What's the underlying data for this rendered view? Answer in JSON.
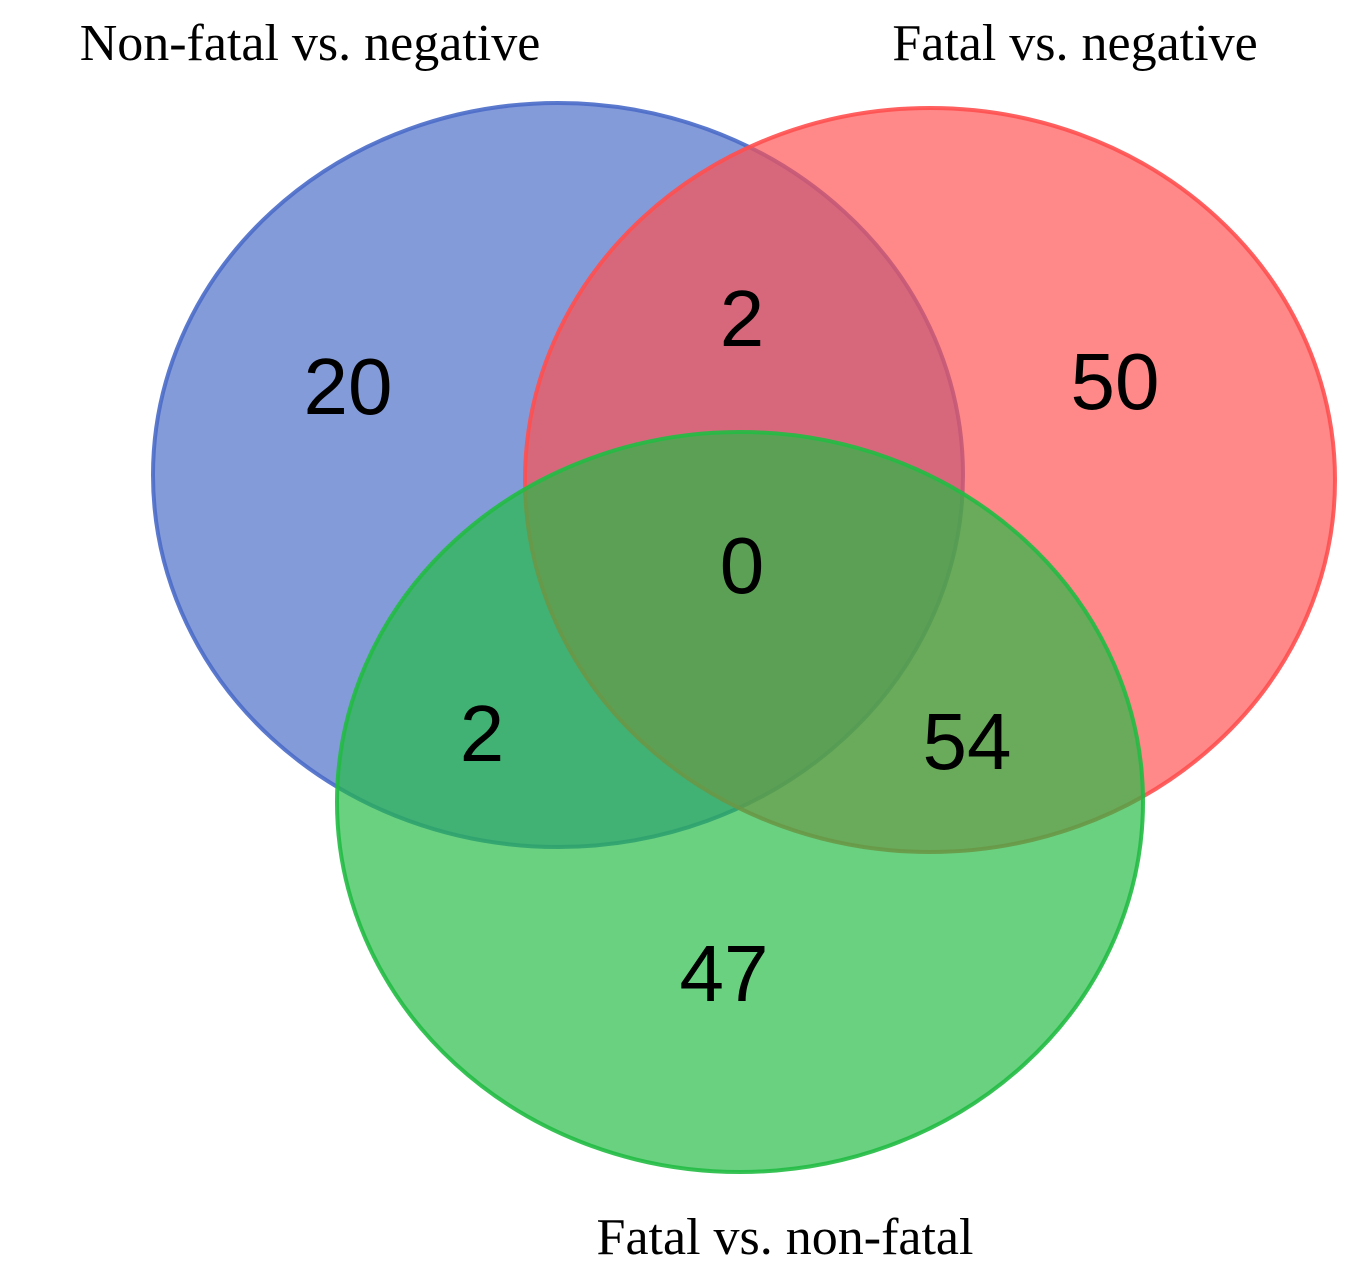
{
  "chart_data": {
    "type": "venn",
    "sets": [
      {
        "name": "Non-fatal vs. negative",
        "color": "#4a6cc8"
      },
      {
        "name": "Fatal vs. negative",
        "color": "#ff4f4f"
      },
      {
        "name": "Fatal vs. non-fatal",
        "color": "#22bb44"
      }
    ],
    "regions": [
      {
        "sets": [
          0
        ],
        "value": 20
      },
      {
        "sets": [
          0,
          1
        ],
        "value": 2
      },
      {
        "sets": [
          1
        ],
        "value": 50
      },
      {
        "sets": [
          0,
          1,
          2
        ],
        "value": 0
      },
      {
        "sets": [
          0,
          2
        ],
        "value": 2
      },
      {
        "sets": [
          1,
          2
        ],
        "value": 54
      },
      {
        "sets": [
          2
        ],
        "value": 47
      }
    ]
  }
}
